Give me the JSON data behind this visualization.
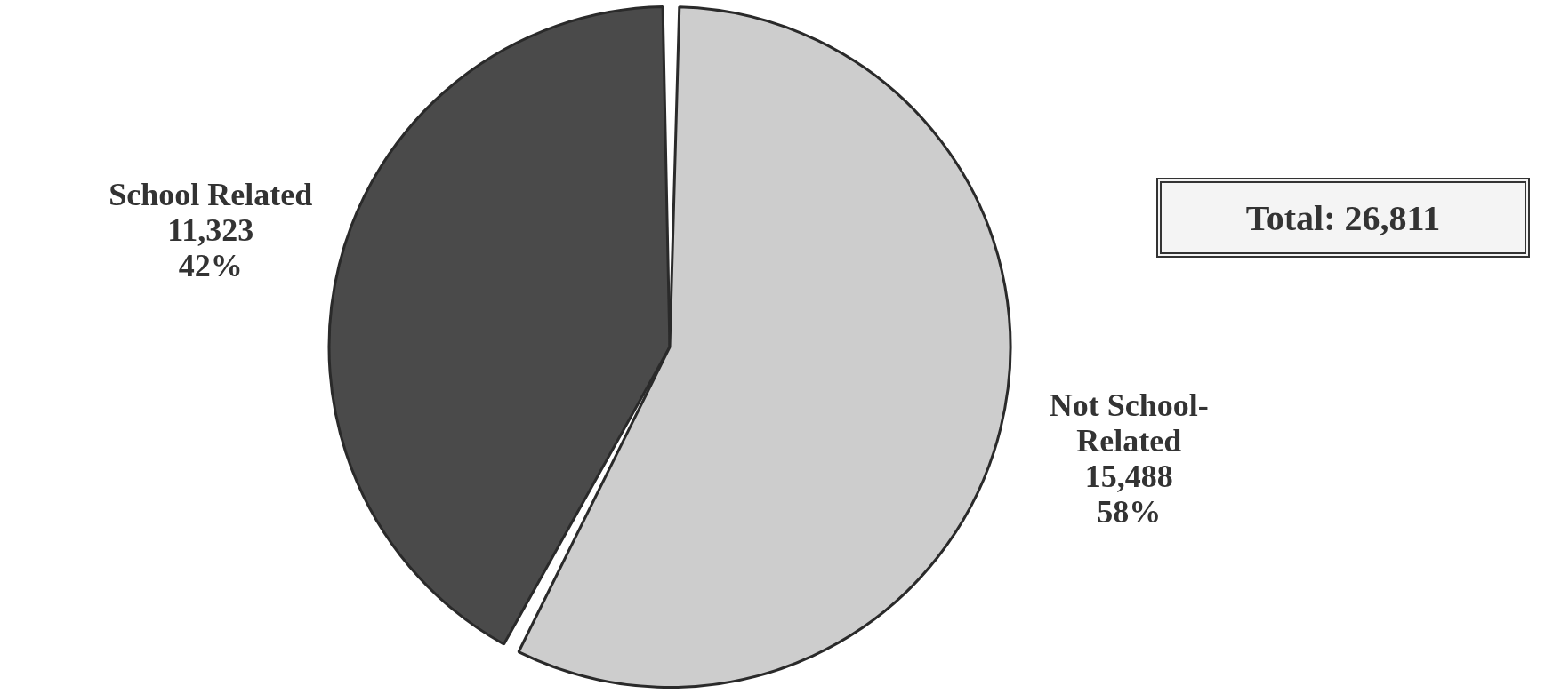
{
  "chart_data": {
    "type": "pie",
    "categories": [
      "School Related",
      "Not School-Related"
    ],
    "values": [
      11323,
      15488
    ],
    "colors": [
      "#4a4a4a",
      "#cdcdcd"
    ],
    "value_labels": [
      "11,323\n42%",
      "15,488\n58%"
    ],
    "annotations": [
      "Total: 26,811"
    ]
  }
}
